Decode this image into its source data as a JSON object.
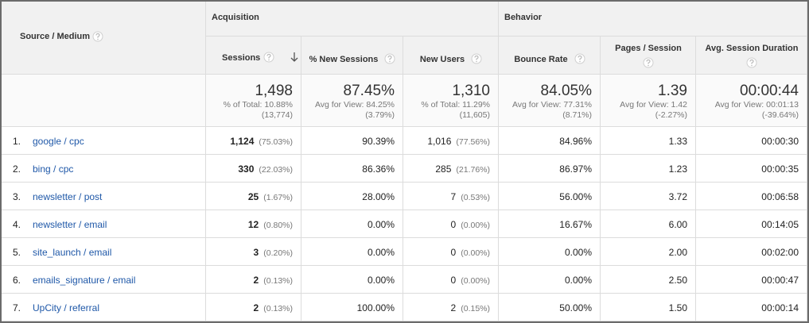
{
  "header": {
    "source_medium": "Source / Medium",
    "groups": [
      "Acquisition",
      "Behavior"
    ],
    "columns": [
      "Sessions",
      "% New Sessions",
      "New Users",
      "Bounce Rate",
      "Pages / Session",
      "Avg. Session Duration"
    ]
  },
  "totals": [
    {
      "value": "1,498",
      "note": "% of Total: 10.88%",
      "detail": "(13,774)"
    },
    {
      "value": "87.45%",
      "note": "Avg for View: 84.25%",
      "detail": "(3.79%)"
    },
    {
      "value": "1,310",
      "note": "% of Total: 11.29%",
      "detail": "(11,605)"
    },
    {
      "value": "84.05%",
      "note": "Avg for View: 77.31%",
      "detail": "(8.71%)"
    },
    {
      "value": "1.39",
      "note": "Avg for View: 1.42",
      "detail": "(-2.27%)"
    },
    {
      "value": "00:00:44",
      "note": "Avg for View: 00:01:13",
      "detail": "(-39.64%)"
    }
  ],
  "rows": [
    {
      "index": "1.",
      "source": "google / cpc",
      "cells": [
        {
          "value": "1,124",
          "share": "(75.03%)"
        },
        {
          "value": "90.39%"
        },
        {
          "value": "1,016",
          "share": "(77.56%)"
        },
        {
          "value": "84.96%"
        },
        {
          "value": "1.33"
        },
        {
          "value": "00:00:30"
        }
      ]
    },
    {
      "index": "2.",
      "source": "bing / cpc",
      "cells": [
        {
          "value": "330",
          "share": "(22.03%)"
        },
        {
          "value": "86.36%"
        },
        {
          "value": "285",
          "share": "(21.76%)"
        },
        {
          "value": "86.97%"
        },
        {
          "value": "1.23"
        },
        {
          "value": "00:00:35"
        }
      ]
    },
    {
      "index": "3.",
      "source": "newsletter / post",
      "cells": [
        {
          "value": "25",
          "share": "(1.67%)"
        },
        {
          "value": "28.00%"
        },
        {
          "value": "7",
          "share": "(0.53%)"
        },
        {
          "value": "56.00%"
        },
        {
          "value": "3.72"
        },
        {
          "value": "00:06:58"
        }
      ]
    },
    {
      "index": "4.",
      "source": "newsletter / email",
      "cells": [
        {
          "value": "12",
          "share": "(0.80%)"
        },
        {
          "value": "0.00%"
        },
        {
          "value": "0",
          "share": "(0.00%)"
        },
        {
          "value": "16.67%"
        },
        {
          "value": "6.00"
        },
        {
          "value": "00:14:05"
        }
      ]
    },
    {
      "index": "5.",
      "source": "site_launch / email",
      "cells": [
        {
          "value": "3",
          "share": "(0.20%)"
        },
        {
          "value": "0.00%"
        },
        {
          "value": "0",
          "share": "(0.00%)"
        },
        {
          "value": "0.00%"
        },
        {
          "value": "2.00"
        },
        {
          "value": "00:02:00"
        }
      ]
    },
    {
      "index": "6.",
      "source": "emails_signature / email",
      "cells": [
        {
          "value": "2",
          "share": "(0.13%)"
        },
        {
          "value": "0.00%"
        },
        {
          "value": "0",
          "share": "(0.00%)"
        },
        {
          "value": "0.00%"
        },
        {
          "value": "2.50"
        },
        {
          "value": "00:00:47"
        }
      ]
    },
    {
      "index": "7.",
      "source": "UpCity / referral",
      "cells": [
        {
          "value": "2",
          "share": "(0.13%)"
        },
        {
          "value": "100.00%"
        },
        {
          "value": "2",
          "share": "(0.15%)"
        },
        {
          "value": "50.00%"
        },
        {
          "value": "1.50"
        },
        {
          "value": "00:00:14"
        }
      ]
    }
  ]
}
